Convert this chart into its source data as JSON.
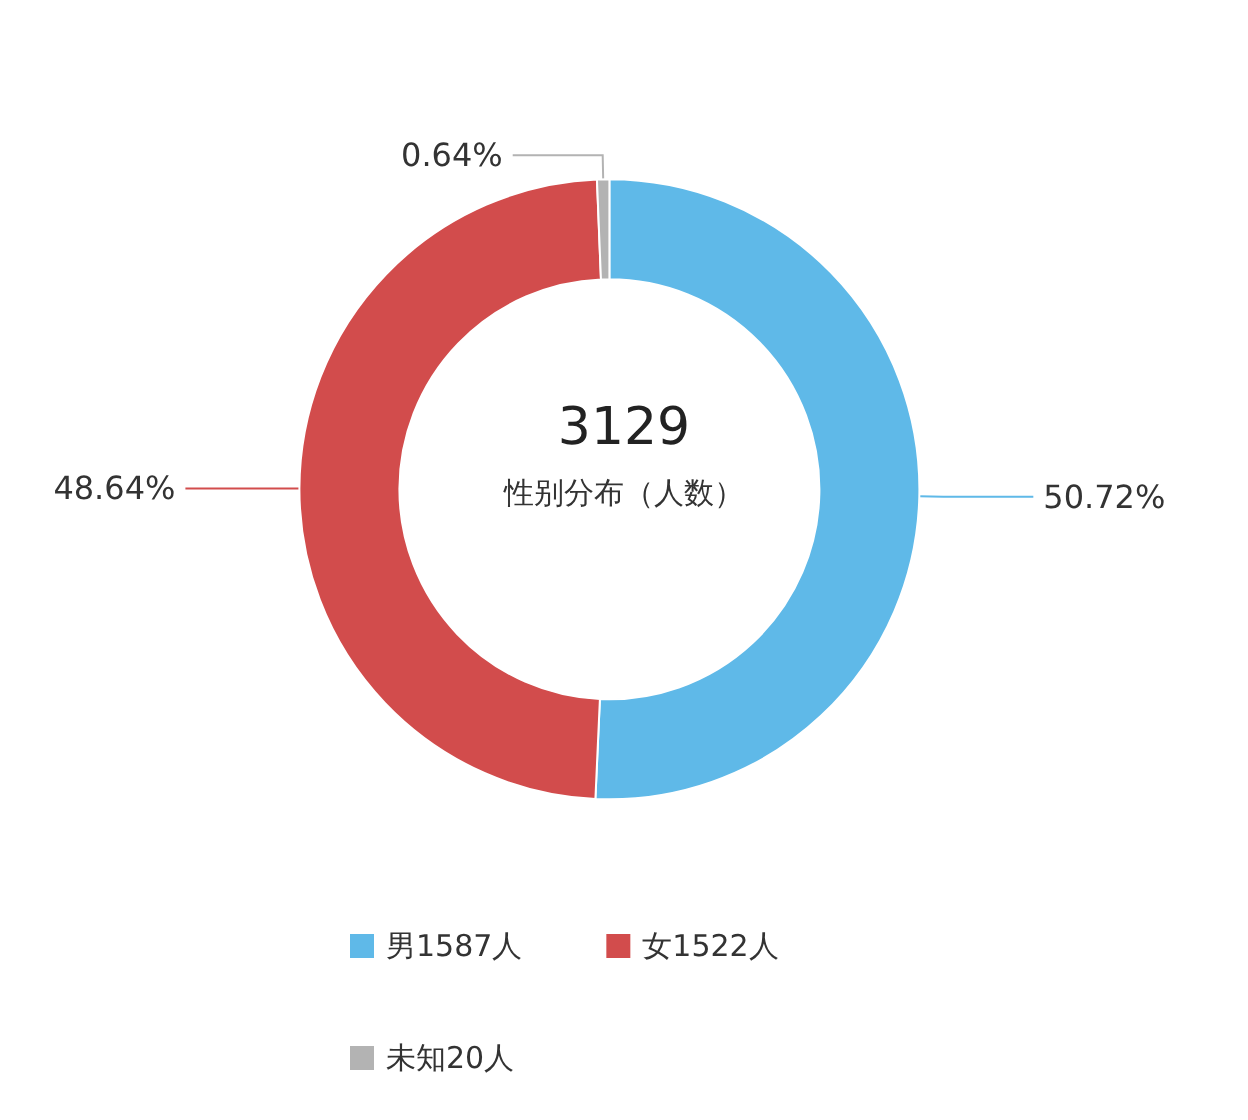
{
  "chart_data": {
    "type": "donut",
    "title": "3129",
    "subtitle": "性别分布（人数）",
    "categories": [
      "男1587人",
      "女1522人",
      "未知20人"
    ],
    "values": [
      50.72,
      48.64,
      0.64
    ],
    "colors": [
      "#5fb9e8",
      "#d24c4c",
      "#b3b3b3"
    ],
    "value_labels": [
      "50.72%",
      "48.64%",
      "0.64%"
    ],
    "legend": "bottom"
  }
}
